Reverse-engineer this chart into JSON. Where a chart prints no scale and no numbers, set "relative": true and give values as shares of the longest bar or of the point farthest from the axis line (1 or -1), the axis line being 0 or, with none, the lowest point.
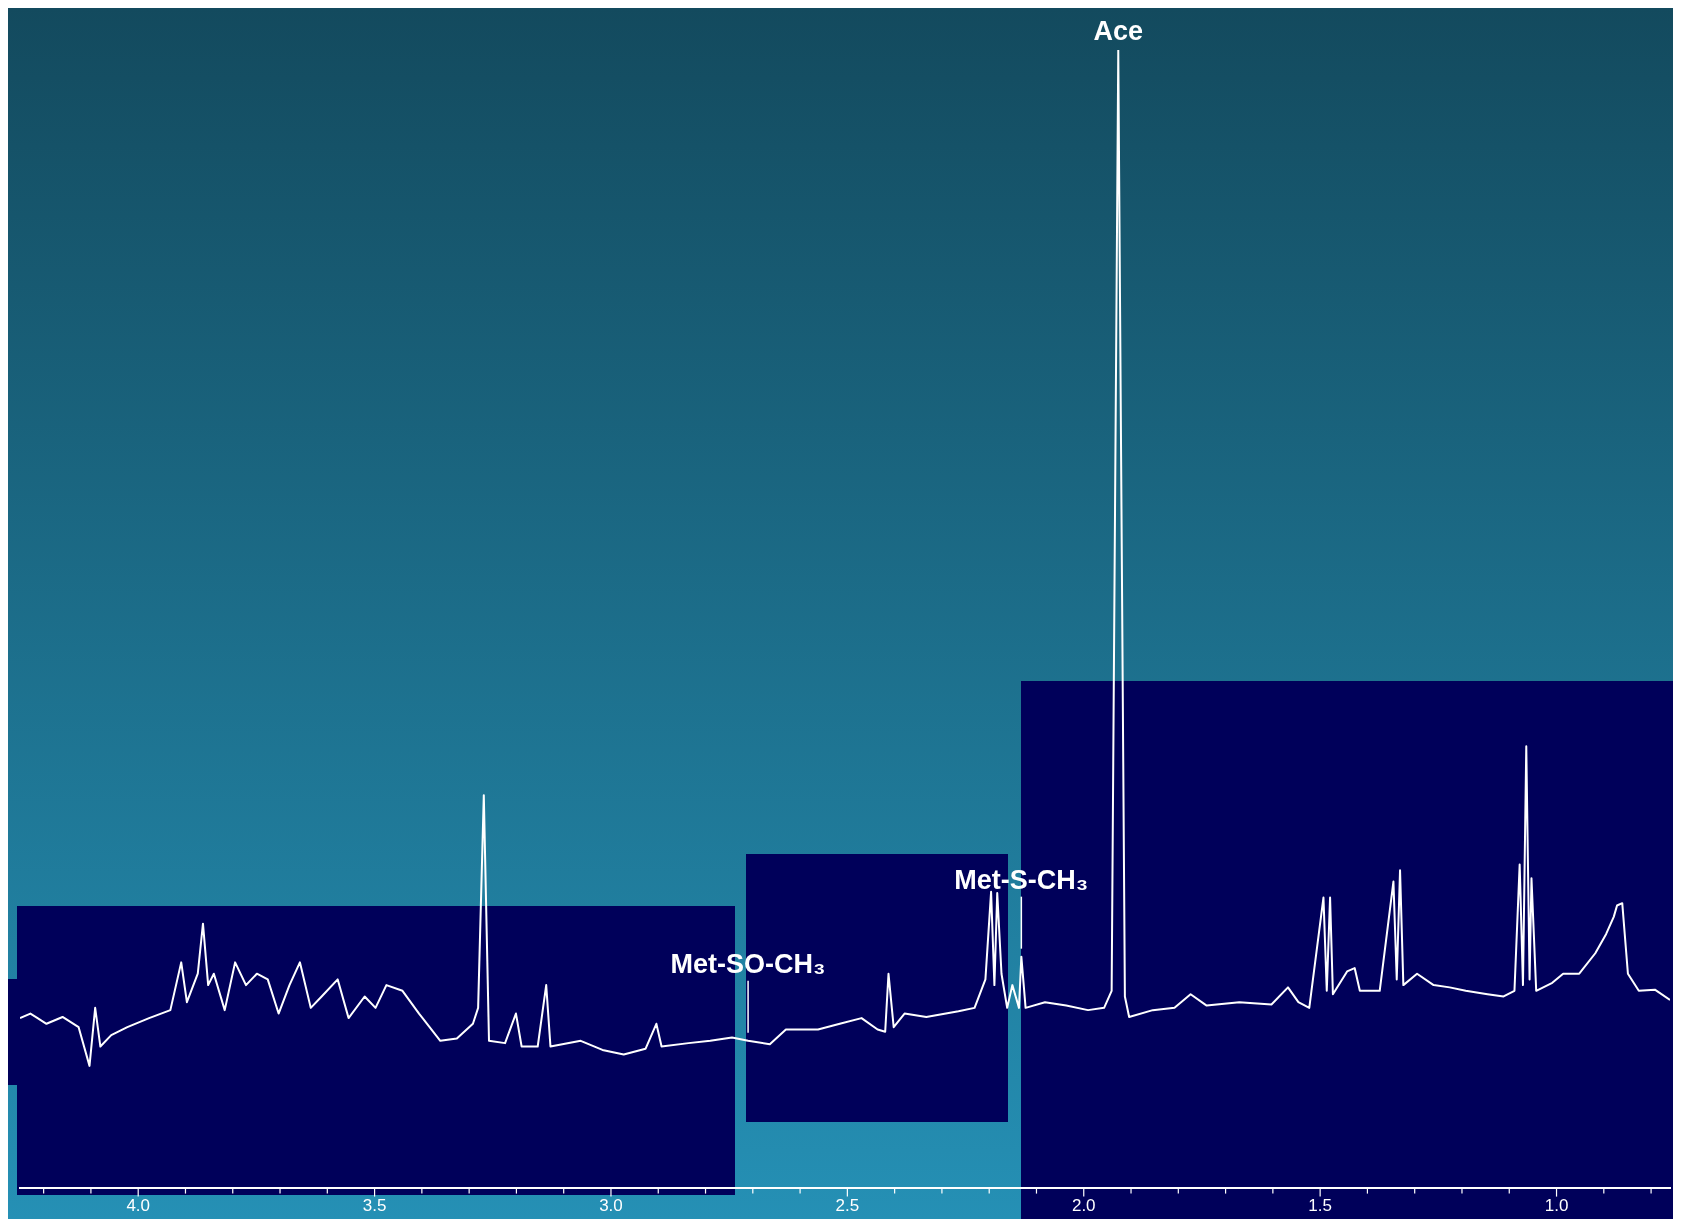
{
  "chart_data": {
    "type": "line",
    "relative": true,
    "grid": false,
    "legend": false,
    "marker": "none",
    "line_style": "solid",
    "xlim": [
      4.25,
      0.76
    ],
    "xticks": [
      {
        "value": 4.2,
        "label": null
      },
      {
        "value": 4.1,
        "label": null
      },
      {
        "value": 4,
        "label": "4.0"
      },
      {
        "value": 3.9,
        "label": null
      },
      {
        "value": 3.8,
        "label": null
      },
      {
        "value": 3.7,
        "label": null
      },
      {
        "value": 3.6,
        "label": null
      },
      {
        "value": 3.5,
        "label": "3.5"
      },
      {
        "value": 3.4,
        "label": null
      },
      {
        "value": 3.3,
        "label": null
      },
      {
        "value": 3.2,
        "label": null
      },
      {
        "value": 3.1,
        "label": null
      },
      {
        "value": 3,
        "label": "3.0"
      },
      {
        "value": 2.9,
        "label": null
      },
      {
        "value": 2.8,
        "label": null
      },
      {
        "value": 2.7,
        "label": null
      },
      {
        "value": 2.6,
        "label": null
      },
      {
        "value": 2.5,
        "label": "2.5"
      },
      {
        "value": 2.4,
        "label": null
      },
      {
        "value": 2.3,
        "label": null
      },
      {
        "value": 2.2,
        "label": null
      },
      {
        "value": 2.1,
        "label": null
      },
      {
        "value": 2,
        "label": "2.0"
      },
      {
        "value": 1.9,
        "label": null
      },
      {
        "value": 1.8,
        "label": null
      },
      {
        "value": 1.7,
        "label": null
      },
      {
        "value": 1.6,
        "label": null
      },
      {
        "value": 1.5,
        "label": "1.5"
      },
      {
        "value": 1.4,
        "label": null
      },
      {
        "value": 1.3,
        "label": null
      },
      {
        "value": 1.2,
        "label": null
      },
      {
        "value": 1.1,
        "label": null
      },
      {
        "value": 1,
        "label": "1.0"
      },
      {
        "value": 0.9,
        "label": null
      },
      {
        "value": 0.8,
        "label": null
      }
    ],
    "annotations": [
      {
        "text": "Ace",
        "x": 1.927,
        "y": 1.0
      },
      {
        "text": "Met-S-CH₃",
        "x": 2.132,
        "y": 0.203
      },
      {
        "text": "Met-SO-CH₃",
        "x": 2.71,
        "y": 0.129
      }
    ],
    "series": [
      {
        "color": "#ffffff",
        "x": [
          4.25,
          4.228,
          4.194,
          4.16,
          4.126,
          4.103,
          4.091,
          4.08,
          4.057,
          4.023,
          3.977,
          3.932,
          3.909,
          3.897,
          3.874,
          3.863,
          3.852,
          3.84,
          3.817,
          3.795,
          3.772,
          3.749,
          3.726,
          3.703,
          3.68,
          3.658,
          3.635,
          3.612,
          3.578,
          3.555,
          3.521,
          3.498,
          3.475,
          3.441,
          3.406,
          3.361,
          3.326,
          3.292,
          3.281,
          3.269,
          3.258,
          3.224,
          3.201,
          3.189,
          3.155,
          3.137,
          3.128,
          3.064,
          3.018,
          2.973,
          2.927,
          2.904,
          2.893,
          2.836,
          2.79,
          2.744,
          2.71,
          2.664,
          2.63,
          2.562,
          2.516,
          2.47,
          2.436,
          2.42,
          2.413,
          2.402,
          2.379,
          2.333,
          2.265,
          2.231,
          2.208,
          2.196,
          2.189,
          2.183,
          2.174,
          2.162,
          2.151,
          2.137,
          2.132,
          2.123,
          2.082,
          2.037,
          1.991,
          1.957,
          1.941,
          1.927,
          1.913,
          1.904,
          1.854,
          1.808,
          1.774,
          1.74,
          1.671,
          1.603,
          1.568,
          1.546,
          1.523,
          1.493,
          1.486,
          1.479,
          1.473,
          1.443,
          1.427,
          1.416,
          1.374,
          1.345,
          1.338,
          1.331,
          1.324,
          1.295,
          1.26,
          1.226,
          1.192,
          1.146,
          1.112,
          1.089,
          1.078,
          1.071,
          1.064,
          1.057,
          1.053,
          1.043,
          1.009,
          0.986,
          0.952,
          0.918,
          0.895,
          0.879,
          0.872,
          0.861,
          0.849,
          0.826,
          0.792,
          0.76
        ],
        "values": [
          0.149,
          0.153,
          0.144,
          0.15,
          0.141,
          0.107,
          0.158,
          0.124,
          0.134,
          0.141,
          0.149,
          0.156,
          0.198,
          0.163,
          0.188,
          0.232,
          0.178,
          0.188,
          0.156,
          0.198,
          0.178,
          0.188,
          0.183,
          0.153,
          0.178,
          0.198,
          0.158,
          0.168,
          0.183,
          0.149,
          0.168,
          0.158,
          0.178,
          0.173,
          0.153,
          0.129,
          0.131,
          0.144,
          0.158,
          0.345,
          0.129,
          0.127,
          0.153,
          0.124,
          0.124,
          0.178,
          0.124,
          0.129,
          0.121,
          0.117,
          0.122,
          0.144,
          0.124,
          0.127,
          0.129,
          0.132,
          0.129,
          0.126,
          0.139,
          0.139,
          0.144,
          0.149,
          0.139,
          0.137,
          0.188,
          0.141,
          0.153,
          0.15,
          0.155,
          0.158,
          0.183,
          0.26,
          0.178,
          0.259,
          0.188,
          0.158,
          0.178,
          0.158,
          0.203,
          0.158,
          0.163,
          0.16,
          0.156,
          0.158,
          0.173,
          1.0,
          0.168,
          0.15,
          0.156,
          0.158,
          0.17,
          0.16,
          0.163,
          0.161,
          0.176,
          0.163,
          0.158,
          0.255,
          0.173,
          0.255,
          0.17,
          0.19,
          0.193,
          0.173,
          0.173,
          0.269,
          0.183,
          0.279,
          0.178,
          0.188,
          0.178,
          0.176,
          0.173,
          0.17,
          0.168,
          0.173,
          0.284,
          0.178,
          0.388,
          0.183,
          0.272,
          0.173,
          0.18,
          0.188,
          0.188,
          0.206,
          0.223,
          0.238,
          0.248,
          0.25,
          0.188,
          0.173,
          0.174,
          0.165
        ]
      }
    ]
  }
}
